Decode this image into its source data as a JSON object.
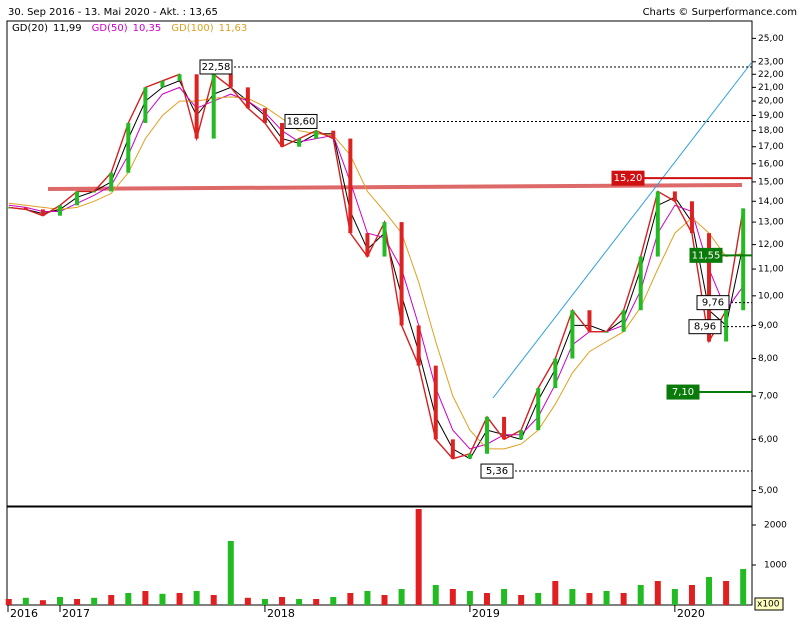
{
  "header": {
    "range": "30. Sep 2016 - 13. Mai 2020 - Akt. : 13,65",
    "source": "Charts © Surperformance.com"
  },
  "chart_data": [
    {
      "type": "line",
      "log_scale": true,
      "color": "#d42020",
      "categories": [
        "2016",
        null,
        null,
        "2017",
        null,
        null,
        null,
        null,
        null,
        null,
        null,
        null,
        null,
        null,
        null,
        "2018",
        null,
        null,
        null,
        null,
        null,
        null,
        null,
        null,
        null,
        null,
        null,
        "2019",
        null,
        null,
        null,
        null,
        null,
        null,
        null,
        null,
        null,
        null,
        null,
        "2020",
        null,
        null,
        null,
        null
      ],
      "values": [
        13.7,
        13.6,
        13.3,
        13.8,
        14.5,
        14.5,
        15.5,
        18.5,
        21,
        21.5,
        22,
        17.5,
        22,
        21,
        19.5,
        18.5,
        17,
        17.5,
        18,
        17.5,
        12.5,
        11.5,
        13,
        9,
        7.8,
        6,
        5.6,
        5.7,
        6.5,
        6,
        6.2,
        7.2,
        8,
        9.5,
        8.8,
        8.8,
        9.5,
        11.5,
        14.5,
        14,
        12.5,
        8.5,
        9.5,
        13.65
      ],
      "series": [
        {
          "name": "GD(20)",
          "label": "11,99",
          "color": "#000000",
          "values": [
            13.7,
            13.6,
            13.4,
            13.6,
            14.2,
            14.5,
            15,
            17.5,
            20,
            21,
            21.5,
            19,
            20.5,
            21,
            20,
            19,
            17.5,
            17.2,
            17.8,
            17.8,
            13.5,
            11.8,
            12.5,
            10,
            8.2,
            6.5,
            5.8,
            5.6,
            6.2,
            6.1,
            6,
            6.9,
            7.7,
            9,
            9,
            8.8,
            9.2,
            11,
            13.8,
            14.2,
            13,
            9.5,
            9,
            11.99
          ]
        },
        {
          "name": "GD(50)",
          "label": "10,35",
          "color": "#cc00cc",
          "values": [
            13.8,
            13.7,
            13.5,
            13.5,
            13.9,
            14.3,
            14.8,
            16.5,
            19,
            20.5,
            21,
            19.5,
            20,
            20.5,
            20,
            19.2,
            18,
            17.3,
            17.5,
            17.7,
            15,
            12.5,
            12.3,
            11,
            9,
            7.2,
            6.2,
            5.8,
            5.9,
            6.1,
            6.1,
            6.5,
            7.3,
            8.4,
            8.8,
            8.8,
            9,
            10.2,
            12.5,
            13.8,
            13.5,
            11,
            9.5,
            10.35
          ]
        },
        {
          "name": "GD(100)",
          "label": "11,63",
          "color": "#e0a020",
          "values": [
            13.9,
            13.8,
            13.7,
            13.6,
            13.7,
            14,
            14.4,
            15.5,
            17.5,
            19,
            20,
            20,
            20.2,
            20.3,
            20.2,
            19.6,
            18.8,
            18,
            17.8,
            17.7,
            16.5,
            14.5,
            13.5,
            12.5,
            10.5,
            8.5,
            7,
            6.2,
            5.8,
            5.8,
            5.9,
            6.2,
            6.8,
            7.6,
            8.2,
            8.5,
            8.8,
            9.6,
            11,
            12.5,
            13.2,
            12.5,
            11.5,
            11.63
          ]
        }
      ],
      "ylim": [
        4.75,
        26.5
      ],
      "yticks": [
        {
          "value": 5,
          "label": "5,00"
        },
        {
          "value": 6,
          "label": "6,00"
        },
        {
          "value": 7,
          "label": "7,00"
        },
        {
          "value": 8,
          "label": "8,00"
        },
        {
          "value": 9,
          "label": "9,00"
        },
        {
          "value": 10,
          "label": "10,00"
        },
        {
          "value": 11,
          "label": "11,00"
        },
        {
          "value": 12,
          "label": "12,00"
        },
        {
          "value": 13,
          "label": "13,00"
        },
        {
          "value": 14,
          "label": "14,00"
        },
        {
          "value": 15,
          "label": "15,00"
        },
        {
          "value": 16,
          "label": "16,00"
        },
        {
          "value": 17,
          "label": "17,00"
        },
        {
          "value": 18,
          "label": "18,00"
        },
        {
          "value": 19,
          "label": "19,00"
        },
        {
          "value": 20,
          "label": "20,00"
        },
        {
          "value": 21,
          "label": "21,00"
        },
        {
          "value": 22,
          "label": "22,00"
        },
        {
          "value": 23,
          "label": "23,00"
        },
        {
          "value": 25,
          "label": "25,00"
        }
      ],
      "levels": [
        {
          "value": 22.58,
          "label": "22,58",
          "color": "#000000"
        },
        {
          "value": 18.6,
          "label": "18,60",
          "color": "#000000"
        },
        {
          "value": 15.2,
          "label": "15,20",
          "color": "#d01010"
        },
        {
          "value": 11.55,
          "label": "11,55",
          "color": "#0a7a0a"
        },
        {
          "value": 9.76,
          "label": "9,76",
          "color": "#000000"
        },
        {
          "value": 8.96,
          "label": "8,96",
          "color": "#000000"
        },
        {
          "value": 7.1,
          "label": "7,10",
          "color": "#0a7a0a"
        },
        {
          "value": 5.36,
          "label": "5,36",
          "color": "#000000"
        }
      ]
    },
    {
      "type": "bar",
      "unit": "x100",
      "color": "#e02020",
      "values": [
        150,
        180,
        120,
        200,
        150,
        180,
        250,
        300,
        350,
        280,
        300,
        350,
        250,
        1600,
        180,
        150,
        200,
        150,
        150,
        200,
        300,
        350,
        250,
        400,
        2400,
        500,
        400,
        350,
        300,
        400,
        250,
        300,
        600,
        400,
        300,
        350,
        300,
        500,
        600,
        400,
        500,
        700,
        600,
        900
      ],
      "ylim": [
        0,
        2400
      ],
      "yticks": [
        1000,
        2000
      ]
    }
  ]
}
